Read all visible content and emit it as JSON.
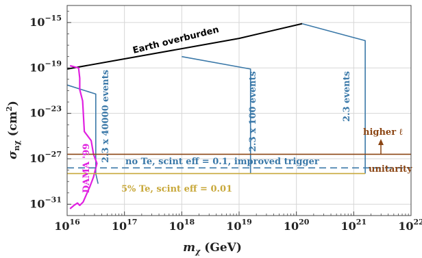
{
  "chart_data": {
    "type": "line",
    "title": "",
    "xlabel": "m_χ (GeV)",
    "ylabel": "σ_nχ (cm²)",
    "x_scale": "log",
    "y_scale": "log",
    "xlim_log10": [
      16,
      22
    ],
    "ylim_log10": [
      -32,
      -13.5
    ],
    "grid": true,
    "x_ticks": [
      16,
      17,
      18,
      19,
      20,
      21,
      22
    ],
    "y_ticks": [
      -31,
      -27,
      -23,
      -19,
      -15
    ],
    "series": [
      {
        "name": "Earth overburden",
        "color": "#000000",
        "log10_x": [
          16.0,
          17.0,
          18.0,
          19.0,
          20.1
        ],
        "log10_y": [
          -19.1,
          -18.2,
          -17.3,
          -16.4,
          -15.1
        ]
      },
      {
        "name": "2.3 x 40000 events",
        "color": "#3a78a8",
        "log10_x": [
          16.0,
          16.0,
          16.5,
          16.5,
          16.54
        ],
        "log10_y": [
          -20.5,
          -20.5,
          -21.3,
          -28.3,
          -29.2
        ]
      },
      {
        "name": "2.3 x 100 events",
        "color": "#3a78a8",
        "log10_x": [
          18.0,
          19.2,
          19.2,
          19.2
        ],
        "log10_y": [
          -18.0,
          -19.1,
          -23.0,
          -28.3
        ]
      },
      {
        "name": "2.3 events",
        "color": "#3a78a8",
        "log10_x": [
          20.1,
          21.2,
          21.2,
          21.2
        ],
        "log10_y": [
          -15.1,
          -16.6,
          -23.0,
          -28.3
        ]
      },
      {
        "name": "DAMA '99",
        "color": "#e020e0",
        "log10_x": [
          16.05,
          16.2,
          16.22,
          16.22,
          16.27,
          16.3,
          16.42,
          16.46,
          16.52,
          16.46,
          16.4,
          16.28,
          16.22,
          16.18,
          16.12,
          16.05,
          16.05
        ],
        "log10_y": [
          -18.8,
          -19.0,
          -19.9,
          -20.9,
          -21.9,
          -24.6,
          -25.4,
          -26.6,
          -27.4,
          -28.6,
          -29.4,
          -30.8,
          -31.1,
          -30.9,
          -31.1,
          -31.4,
          -31.4
        ]
      },
      {
        "name": "no Te, scint eff = 0.1, improved trigger",
        "color": "#3a78a8",
        "dashed": true,
        "log10_x": [
          16.0,
          22.0
        ],
        "log10_y": [
          -27.8,
          -27.8
        ]
      },
      {
        "name": "5% Te, scint eff = 0.01",
        "color": "#c8a83a",
        "log10_x": [
          16.0,
          21.2
        ],
        "log10_y": [
          -28.3,
          -28.3
        ]
      },
      {
        "name": "unitarity",
        "color": "#8b4513",
        "log10_x": [
          16.0,
          22.0
        ],
        "log10_y": [
          -26.6,
          -26.6
        ]
      }
    ],
    "annotations": {
      "earth": "Earth overburden",
      "events_40000": "2.3 x 40000 events",
      "events_100": "2.3 x 100 events",
      "events_1": "2.3 events",
      "dama": "DAMA '99",
      "no_te": "no Te, scint eff = 0.1, improved trigger",
      "five_te": "5% Te, scint eff = 0.01",
      "unitarity": "unitarity",
      "higher_l": "higher ℓ"
    }
  }
}
